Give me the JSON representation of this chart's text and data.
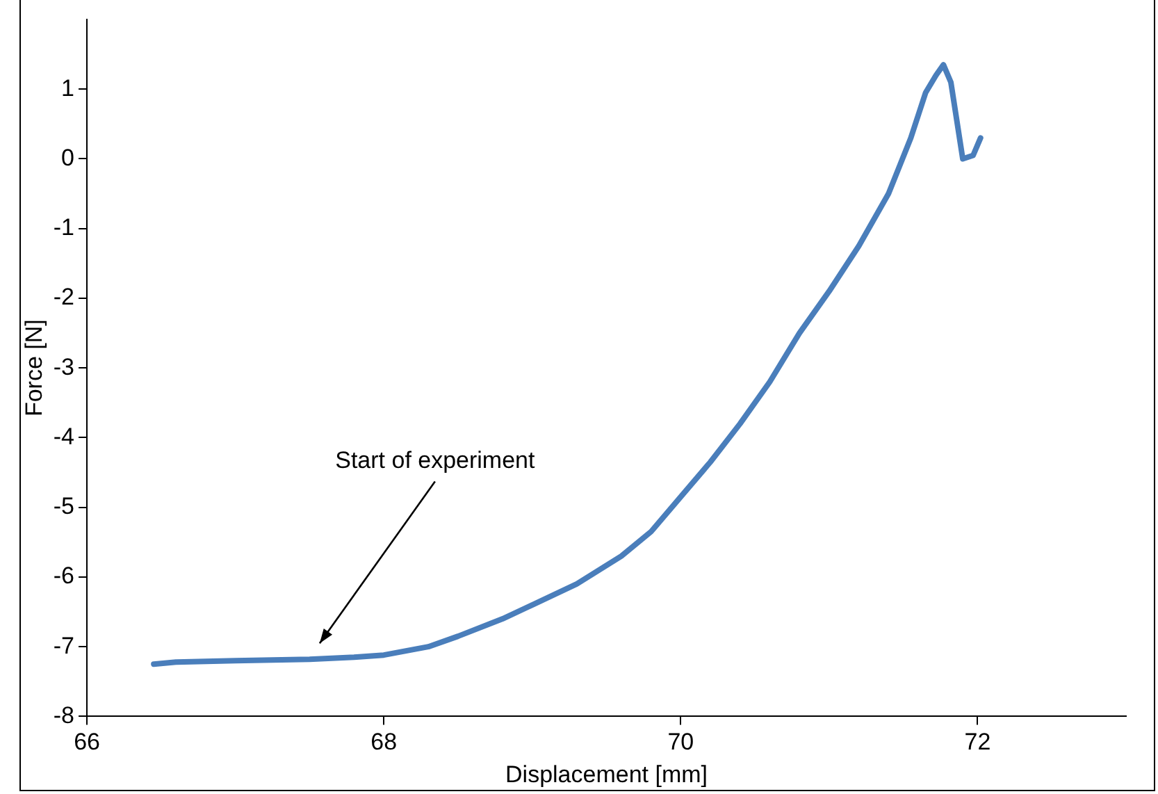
{
  "chart_data": {
    "type": "line",
    "xlabel": "Displacement [mm]",
    "ylabel": "Force [N]",
    "xlim": [
      66,
      73
    ],
    "xticks": [
      66,
      68,
      70,
      72
    ],
    "ylim": [
      -8,
      2
    ],
    "yticks": [
      -8,
      -7,
      -6,
      -5,
      -4,
      -3,
      -2,
      -1,
      0,
      1
    ],
    "grid": false,
    "legend": false,
    "marker": "none",
    "line_style": "solid",
    "annotations": [
      "Start of experiment"
    ],
    "series": [
      {
        "color": "#4a7ebb",
        "x": [
          66.45,
          66.6,
          67.0,
          67.5,
          67.8,
          68.0,
          68.3,
          68.5,
          68.8,
          69.0,
          69.3,
          69.6,
          69.8,
          70.0,
          70.2,
          70.4,
          70.6,
          70.8,
          71.0,
          71.2,
          71.4,
          71.55,
          71.65,
          71.72,
          71.77,
          71.82,
          71.9,
          71.97,
          72.02
        ],
        "values": [
          -7.25,
          -7.22,
          -7.2,
          -7.18,
          -7.15,
          -7.12,
          -7.0,
          -6.85,
          -6.6,
          -6.4,
          -6.1,
          -5.7,
          -5.35,
          -4.85,
          -4.35,
          -3.8,
          -3.2,
          -2.5,
          -1.9,
          -1.25,
          -0.5,
          0.3,
          0.95,
          1.2,
          1.35,
          1.1,
          0.0,
          0.05,
          0.3
        ]
      }
    ]
  }
}
